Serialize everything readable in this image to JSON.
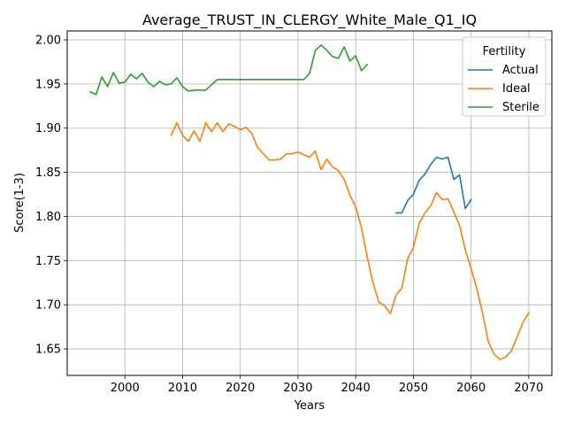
{
  "chart_data": {
    "type": "line",
    "title": "Average_TRUST_IN_CLERGY_White_Male_Q1_IQ",
    "xlabel": "Years",
    "ylabel": "Score(1-3)",
    "xlim": [
      1990,
      2074
    ],
    "ylim": [
      1.62,
      2.01
    ],
    "xticks": [
      2000,
      2010,
      2020,
      2030,
      2040,
      2050,
      2060,
      2070
    ],
    "yticks": [
      "1.65",
      "1.70",
      "1.75",
      "1.80",
      "1.85",
      "1.90",
      "1.95",
      "2.00"
    ],
    "grid": true,
    "legend": {
      "title": "Fertility",
      "position": "top-right"
    },
    "series": [
      {
        "name": "Actual",
        "color": "#1f77b4",
        "x": [
          2047,
          2048,
          2049,
          2050,
          2051,
          2052,
          2053,
          2054,
          2055,
          2056,
          2057,
          2058,
          2059,
          2060
        ],
        "y": [
          1.804,
          1.804,
          1.818,
          1.825,
          1.841,
          1.848,
          1.859,
          1.867,
          1.865,
          1.867,
          1.842,
          1.847,
          1.809,
          1.819
        ]
      },
      {
        "name": "Ideal",
        "color": "#ff7f0e",
        "x": [
          2008,
          2009,
          2010,
          2011,
          2012,
          2013,
          2014,
          2015,
          2016,
          2017,
          2018,
          2019,
          2020,
          2021,
          2022,
          2023,
          2024,
          2025,
          2026,
          2027,
          2028,
          2029,
          2030,
          2031,
          2032,
          2033,
          2034,
          2035,
          2036,
          2037,
          2038,
          2039,
          2040,
          2041,
          2042,
          2043,
          2044,
          2045,
          2046,
          2047,
          2048,
          2049,
          2050,
          2051,
          2052,
          2053,
          2054,
          2055,
          2056,
          2057,
          2058,
          2059,
          2060,
          2061,
          2062,
          2063,
          2064,
          2065,
          2066,
          2067,
          2068,
          2069,
          2070
        ],
        "y": [
          1.892,
          1.906,
          1.892,
          1.885,
          1.897,
          1.885,
          1.906,
          1.896,
          1.906,
          1.896,
          1.905,
          1.902,
          1.898,
          1.901,
          1.894,
          1.878,
          1.871,
          1.864,
          1.864,
          1.865,
          1.871,
          1.871,
          1.873,
          1.87,
          1.867,
          1.874,
          1.853,
          1.865,
          1.856,
          1.852,
          1.842,
          1.824,
          1.811,
          1.787,
          1.754,
          1.725,
          1.703,
          1.699,
          1.69,
          1.711,
          1.719,
          1.752,
          1.765,
          1.792,
          1.804,
          1.812,
          1.827,
          1.819,
          1.82,
          1.805,
          1.79,
          1.762,
          1.741,
          1.718,
          1.69,
          1.658,
          1.644,
          1.638,
          1.641,
          1.648,
          1.664,
          1.68,
          1.691
        ]
      },
      {
        "name": "Sterile",
        "color": "#2ca02c",
        "x": [
          1994,
          1995,
          1996,
          1997,
          1998,
          1999,
          2000,
          2001,
          2002,
          2003,
          2004,
          2005,
          2006,
          2007,
          2008,
          2009,
          2010,
          2011,
          2012,
          2013,
          2014,
          2015,
          2016,
          2017,
          2018,
          2019,
          2020,
          2021,
          2022,
          2023,
          2024,
          2025,
          2026,
          2027,
          2028,
          2029,
          2030,
          2031,
          2032,
          2033,
          2034,
          2035,
          2036,
          2037,
          2038,
          2039,
          2040,
          2041,
          2042
        ],
        "y": [
          1.941,
          1.938,
          1.958,
          1.947,
          1.963,
          1.951,
          1.952,
          1.961,
          1.956,
          1.962,
          1.952,
          1.947,
          1.953,
          1.949,
          1.95,
          1.957,
          1.947,
          1.942,
          1.943,
          1.943,
          1.943,
          1.949,
          1.955,
          1.955,
          1.955,
          1.955,
          1.955,
          1.955,
          1.955,
          1.955,
          1.955,
          1.955,
          1.955,
          1.955,
          1.955,
          1.955,
          1.955,
          1.955,
          1.962,
          1.988,
          1.994,
          1.988,
          1.981,
          1.979,
          1.992,
          1.976,
          1.982,
          1.965,
          1.972
        ]
      }
    ]
  }
}
